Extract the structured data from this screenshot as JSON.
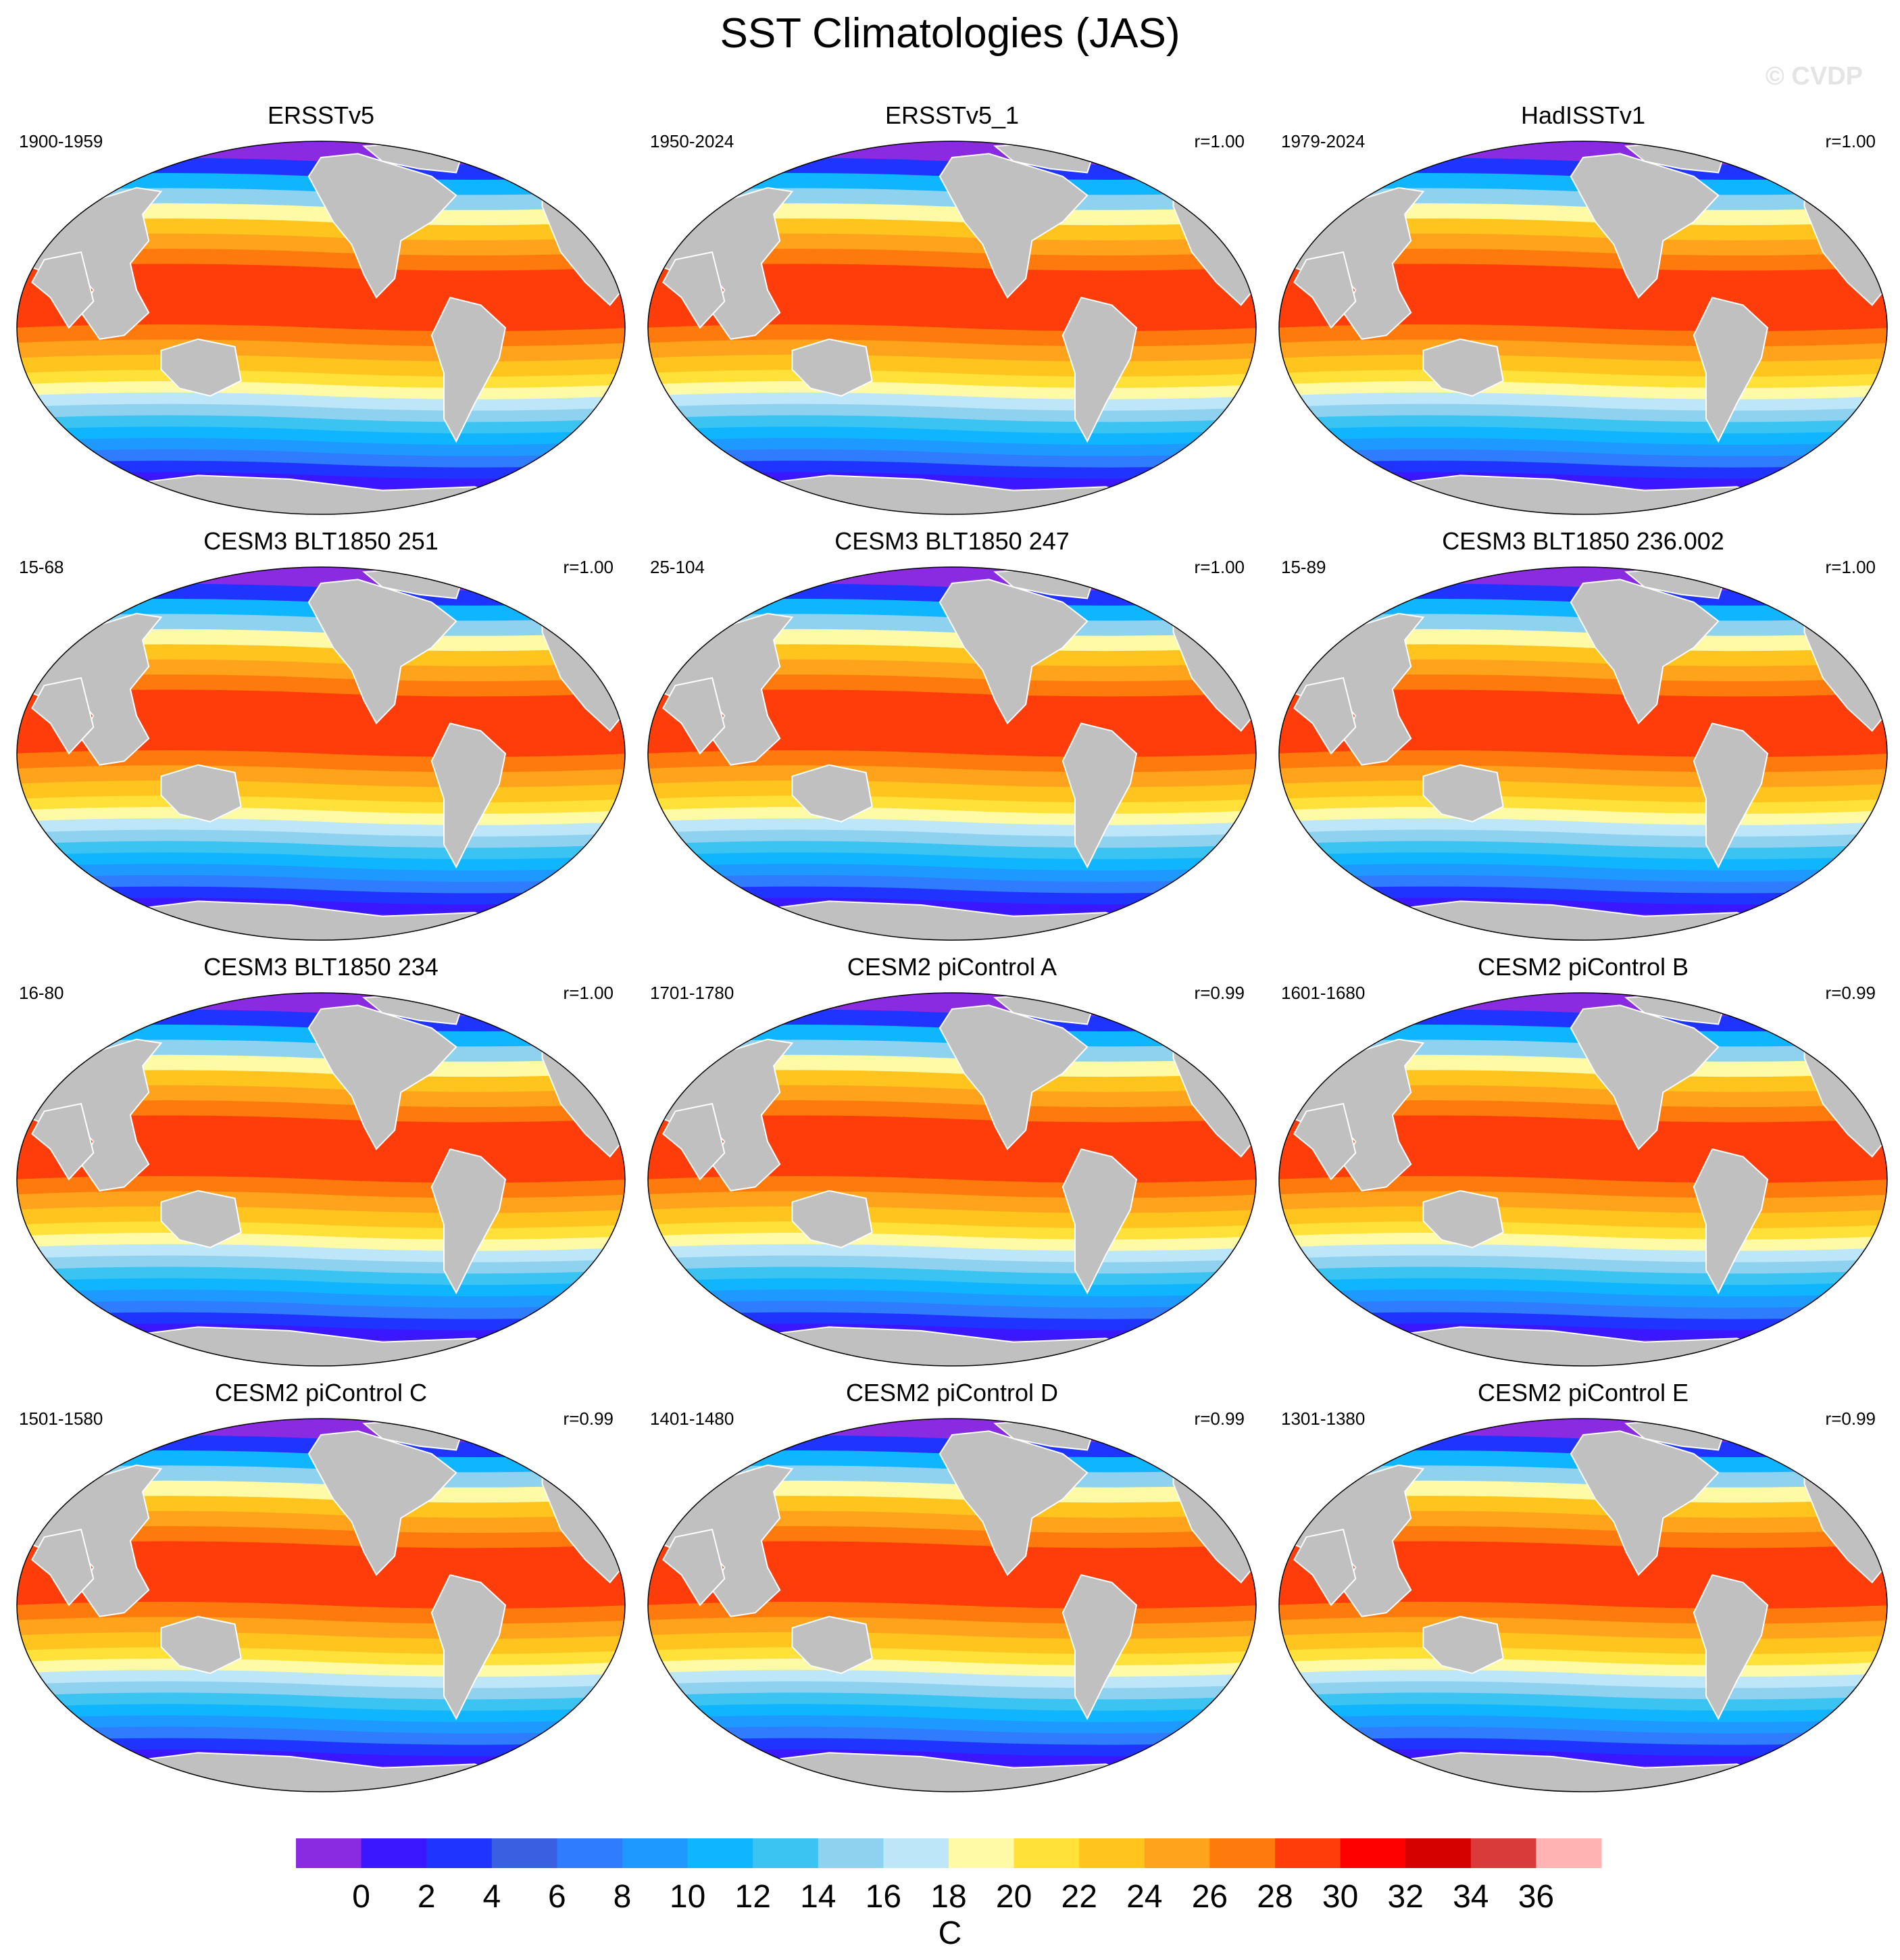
{
  "title": "SST Climatologies (JAS)",
  "watermark": "© CVDP",
  "colors": {
    "land": "#c0c0c0",
    "palette": [
      "#8a2be2",
      "#3a17ff",
      "#1f34ff",
      "#3a5fe0",
      "#2f7cff",
      "#1e99ff",
      "#0fb6ff",
      "#3bc3f2",
      "#8fd2f0",
      "#bde6f8",
      "#fffaa6",
      "#ffe13a",
      "#ffc41e",
      "#ffa21c",
      "#ff7a0c",
      "#ff3d0a",
      "#ff0000",
      "#d50000",
      "#d93a3a",
      "#ffb3b3"
    ]
  },
  "panels": [
    {
      "title": "ERSSTv5",
      "period": "1900-1959",
      "corr": "",
      "icon": "world-map-icon"
    },
    {
      "title": "ERSSTv5_1",
      "period": "1950-2024",
      "corr": "r=1.00",
      "icon": "world-map-icon"
    },
    {
      "title": "HadISSTv1",
      "period": "1979-2024",
      "corr": "r=1.00",
      "icon": "world-map-icon"
    },
    {
      "title": "CESM3 BLT1850 251",
      "period": "15-68",
      "corr": "r=1.00",
      "icon": "world-map-icon"
    },
    {
      "title": "CESM3 BLT1850 247",
      "period": "25-104",
      "corr": "r=1.00",
      "icon": "world-map-icon"
    },
    {
      "title": "CESM3 BLT1850 236.002",
      "period": "15-89",
      "corr": "r=1.00",
      "icon": "world-map-icon"
    },
    {
      "title": "CESM3 BLT1850 234",
      "period": "16-80",
      "corr": "r=1.00",
      "icon": "world-map-icon"
    },
    {
      "title": "CESM2 piControl A",
      "period": "1701-1780",
      "corr": "r=0.99",
      "icon": "world-map-icon"
    },
    {
      "title": "CESM2 piControl B",
      "period": "1601-1680",
      "corr": "r=0.99",
      "icon": "world-map-icon"
    },
    {
      "title": "CESM2 piControl C",
      "period": "1501-1580",
      "corr": "r=0.99",
      "icon": "world-map-icon"
    },
    {
      "title": "CESM2 piControl D",
      "period": "1401-1480",
      "corr": "r=0.99",
      "icon": "world-map-icon"
    },
    {
      "title": "CESM2 piControl E",
      "period": "1301-1380",
      "corr": "r=0.99",
      "icon": "world-map-icon"
    }
  ],
  "colorbar": {
    "labels": [
      "0",
      "2",
      "4",
      "6",
      "8",
      "10",
      "12",
      "14",
      "16",
      "18",
      "20",
      "22",
      "24",
      "26",
      "28",
      "30",
      "32",
      "34",
      "36"
    ],
    "units": "C"
  }
}
